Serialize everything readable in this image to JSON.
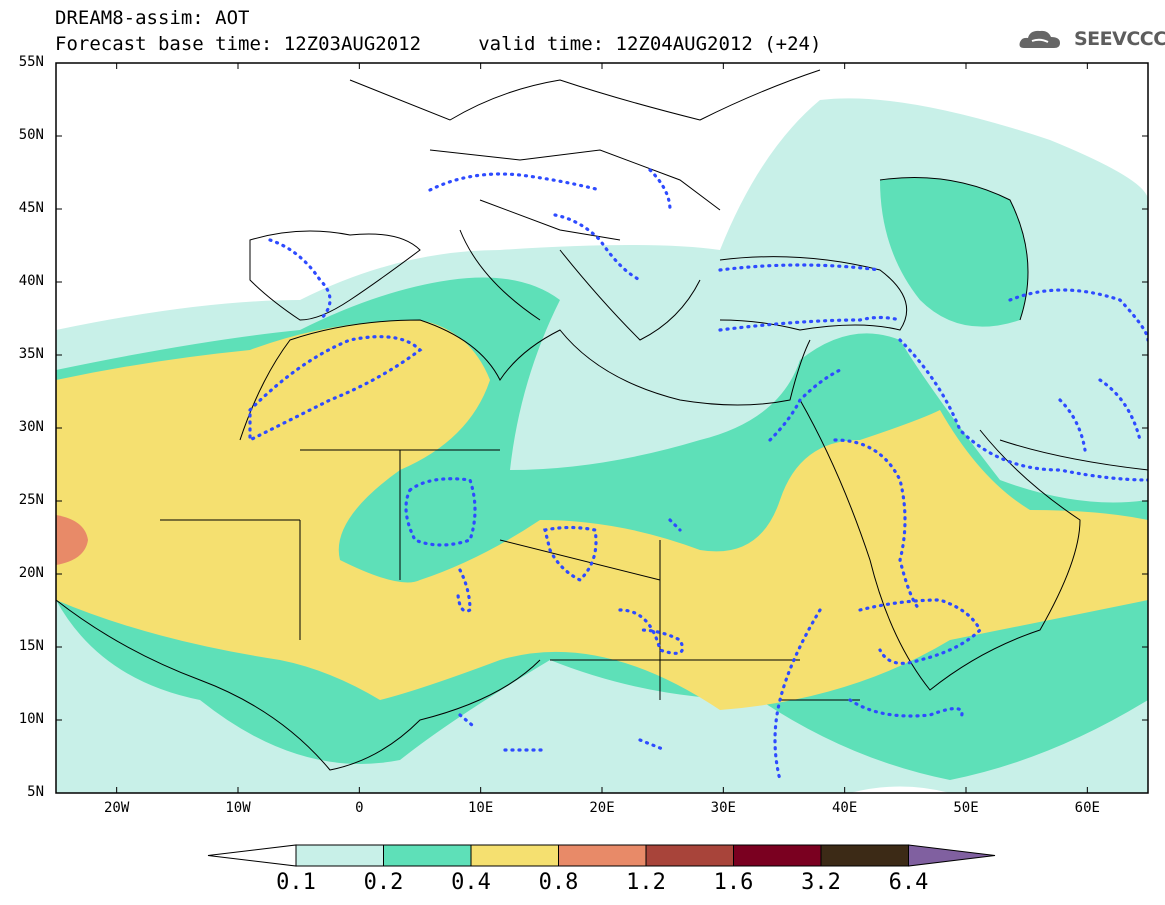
{
  "header": {
    "title_line1": "DREAM8-assim: AOT",
    "title_line2": "Forecast base time: 12Z03AUG2012     valid time: 12Z04AUG2012 (+24)",
    "logo_text": "SEEVCCC",
    "logo_icon": "cloud-icon"
  },
  "map": {
    "variable": "AOT",
    "model": "DREAM8-assim",
    "lon_range": [
      -25,
      65
    ],
    "lat_range": [
      5,
      55
    ],
    "lat_ticks": [
      "55N",
      "50N",
      "45N",
      "40N",
      "35N",
      "30N",
      "25N",
      "20N",
      "15N",
      "10N",
      "5N"
    ],
    "lon_ticks": [
      "20W",
      "10W",
      "0",
      "10E",
      "20E",
      "30E",
      "40E",
      "50E",
      "60E"
    ],
    "contour_color": "#2e4bff",
    "coastline_color": "#000000"
  },
  "colorbar": {
    "labels": [
      "0.1",
      "0.2",
      "0.4",
      "0.8",
      "1.2",
      "1.6",
      "3.2",
      "6.4"
    ],
    "colors": [
      "#c8f0e8",
      "#5ee0b8",
      "#f5e070",
      "#e88a68",
      "#a8443a",
      "#7a0020",
      "#3c2a16",
      "#8060a0"
    ],
    "under_color": "#ffffff"
  }
}
